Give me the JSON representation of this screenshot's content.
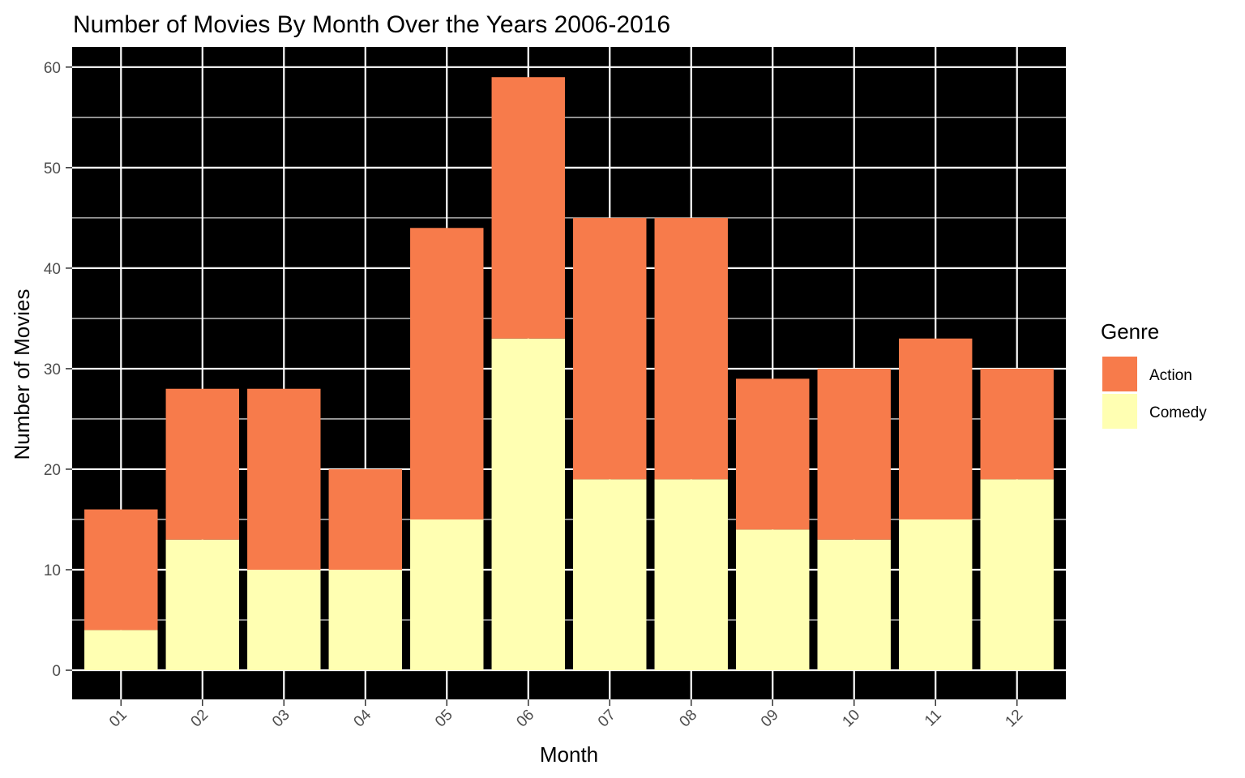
{
  "chart_data": {
    "type": "bar",
    "stacked": true,
    "title": "Number of Movies By Month Over the Years 2006-2016",
    "xlabel": "Month",
    "ylabel": "Number of Movies",
    "categories": [
      "01",
      "02",
      "03",
      "04",
      "05",
      "06",
      "07",
      "08",
      "09",
      "10",
      "11",
      "12"
    ],
    "series": [
      {
        "name": "Comedy",
        "color": "#ffffb2",
        "values": [
          4,
          13,
          10,
          10,
          15,
          33,
          19,
          19,
          14,
          13,
          15,
          19
        ]
      },
      {
        "name": "Action",
        "color": "#f77b4b",
        "values": [
          12,
          15,
          18,
          10,
          29,
          26,
          26,
          26,
          15,
          17,
          18,
          11
        ]
      }
    ],
    "ylim": [
      -2.9,
      62
    ],
    "yticks": [
      0,
      10,
      20,
      30,
      40,
      50,
      60
    ],
    "legend": {
      "title": "Genre",
      "position": "right",
      "entries": [
        "Action",
        "Comedy"
      ]
    },
    "panel_background": "#000000",
    "grid_color": "#ffffff"
  }
}
